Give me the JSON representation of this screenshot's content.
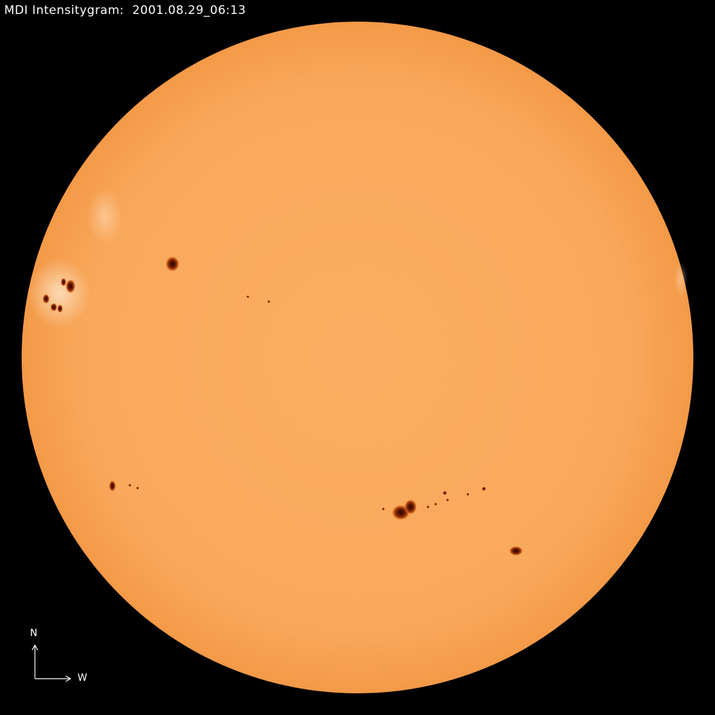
{
  "title": "MDI Intensitygram:  2001.08.29_06:13",
  "compass": {
    "north": "N",
    "west": "W"
  },
  "colors": {
    "background": "#000000",
    "disk": "#f9a95c",
    "limb": "#f39a48",
    "umbra": "#4a0c02",
    "penumbra": "#c0500f",
    "facula": "#fdd6b0"
  },
  "icons": [
    "compass-arrows-icon"
  ]
}
